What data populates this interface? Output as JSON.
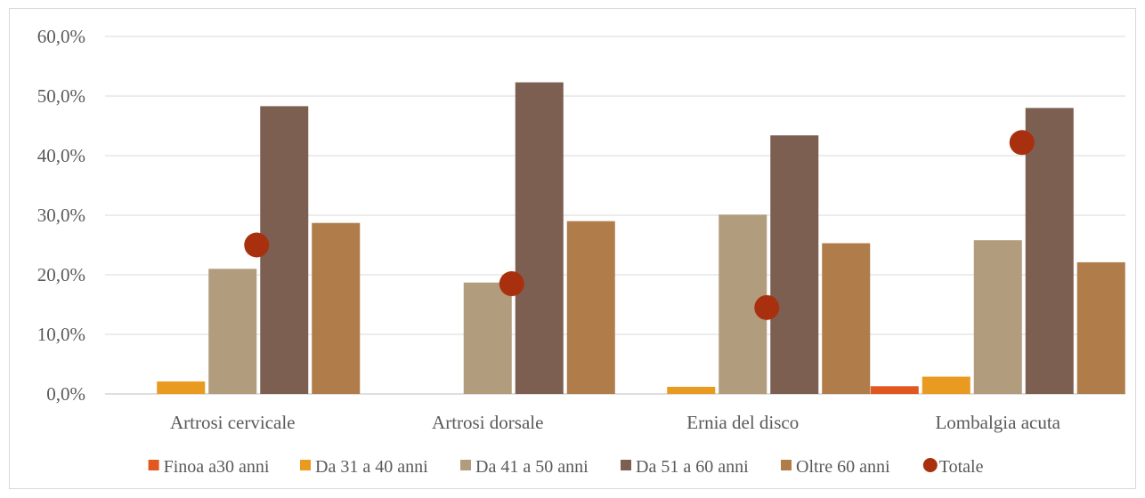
{
  "chart_data": {
    "type": "bar",
    "categories": [
      "Artrosi cervicale",
      "Artrosi dorsale",
      "Ernia del disco",
      "Lombalgia acuta"
    ],
    "ylim": [
      0,
      60
    ],
    "yticks": [
      0,
      10,
      20,
      30,
      40,
      50,
      60
    ],
    "ytick_labels": [
      "0,0%",
      "10,0%",
      "20,0%",
      "30,0%",
      "40,0%",
      "50,0%",
      "60,0%"
    ],
    "grid": true,
    "legend_position": "bottom",
    "series": [
      {
        "name": "Finoa a30 anni",
        "kind": "bar",
        "color": "#e0571f",
        "values": [
          0,
          0,
          0,
          1.3
        ]
      },
      {
        "name": "Da 31 a 40 anni",
        "kind": "bar",
        "color": "#e89a21",
        "values": [
          2.1,
          0,
          1.2,
          2.9
        ]
      },
      {
        "name": "Da 41 a 50 anni",
        "kind": "bar",
        "color": "#b19c7e",
        "values": [
          21.0,
          18.7,
          30.1,
          25.8
        ]
      },
      {
        "name": "Da 51 a 60 anni",
        "kind": "bar",
        "color": "#7d5f51",
        "values": [
          48.3,
          52.3,
          43.4,
          48.0
        ]
      },
      {
        "name": "Oltre 60 anni",
        "kind": "bar",
        "color": "#b07c4a",
        "values": [
          28.7,
          29.0,
          25.3,
          22.1
        ]
      },
      {
        "name": "Totale",
        "kind": "marker",
        "color": "#a8300e",
        "values": [
          25.0,
          18.5,
          14.5,
          42.2
        ]
      }
    ]
  }
}
